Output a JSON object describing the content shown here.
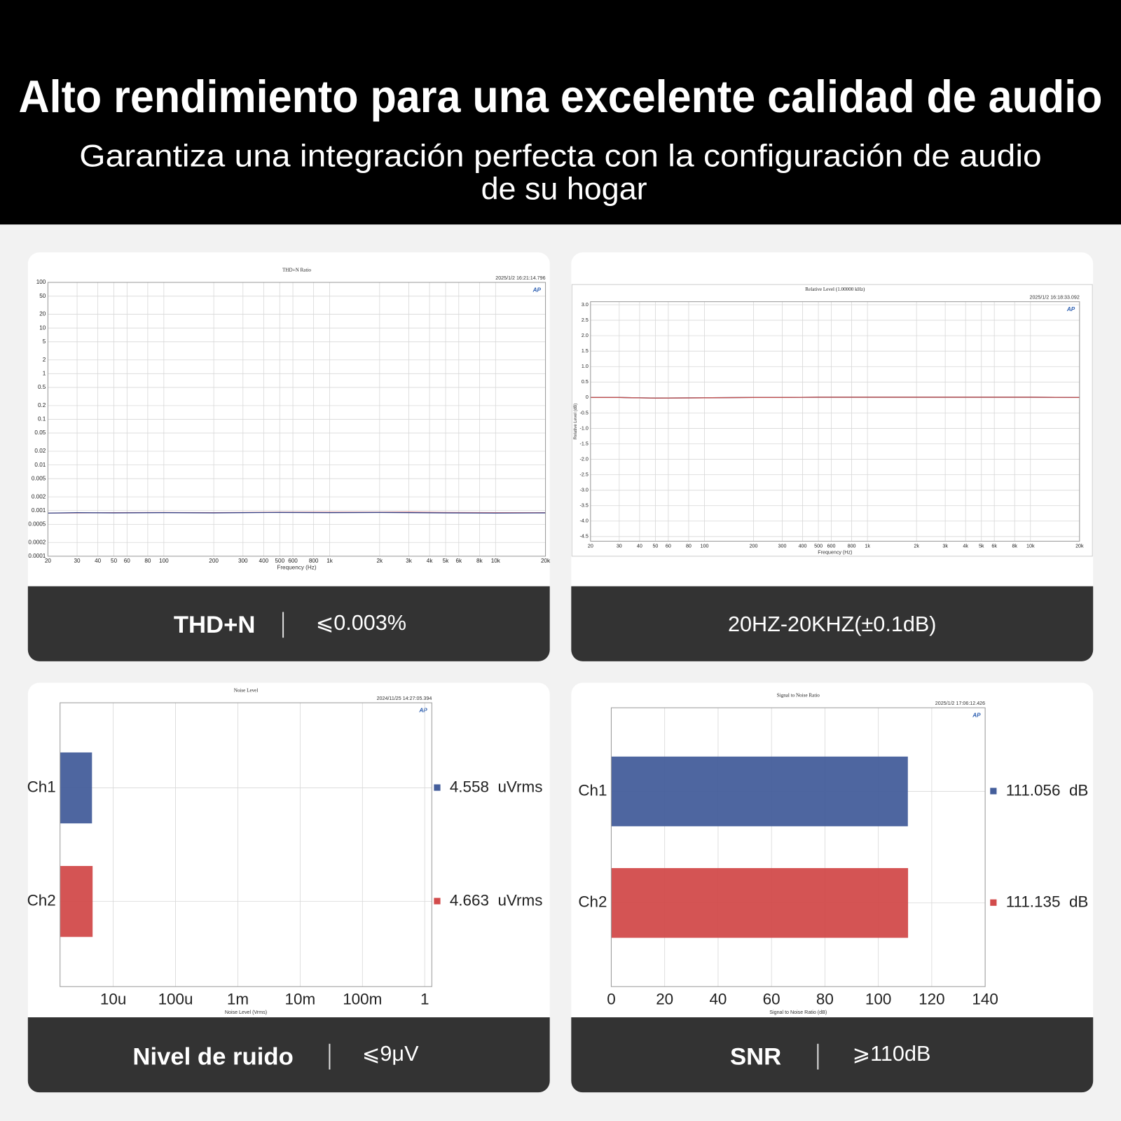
{
  "header": {
    "title": "Alto rendimiento para una excelente calidad de audio",
    "subtitle": [
      "Garantiza una integración perfecta con la configuración de audio",
      "de su hogar"
    ]
  },
  "chart_data": [
    {
      "type": "line",
      "title": "THD+N Ratio",
      "timestamp": "2025/1/2 16:21:14.796",
      "logo": "AP",
      "x_label": "Frequency (Hz)",
      "x": [
        20,
        30,
        50,
        100,
        200,
        300,
        500,
        1000,
        2000,
        3000,
        5000,
        10000,
        20000
      ],
      "series": [
        {
          "color": "#d9848a",
          "values": [
            0.00088,
            0.00089,
            0.0009,
            0.00091,
            0.0009,
            0.00091,
            0.00092,
            0.00092,
            0.00092,
            0.00093,
            0.00091,
            0.0009,
            0.0009
          ]
        },
        {
          "color": "#3b4a8c",
          "values": [
            0.00088,
            0.0009,
            0.00089,
            0.0009,
            0.00089,
            0.0009,
            0.00091,
            0.0009,
            0.00091,
            0.0009,
            0.00089,
            0.00088,
            0.00089
          ]
        }
      ],
      "xscale": "log",
      "xlim": [
        20,
        20000
      ],
      "xticks": [
        20,
        30,
        40,
        50,
        60,
        80,
        100,
        200,
        300,
        400,
        500,
        600,
        800,
        {
          "value": 1000,
          "label": "1k"
        },
        {
          "value": 2000,
          "label": "2k"
        },
        {
          "value": 3000,
          "label": "3k"
        },
        {
          "value": 4000,
          "label": "4k"
        },
        {
          "value": 5000,
          "label": "5k"
        },
        {
          "value": 6000,
          "label": "6k"
        },
        {
          "value": 8000,
          "label": "8k"
        },
        {
          "value": 10000,
          "label": "10k"
        },
        {
          "value": 20000,
          "label": "20k"
        }
      ],
      "yscale": "log",
      "ylim": [
        0.0001,
        100
      ],
      "yticks": [
        100,
        50,
        20,
        10,
        5,
        2,
        1,
        0.5,
        0.2,
        0.1,
        0.05,
        0.02,
        0.01,
        0.005,
        0.002,
        0.001,
        0.0005,
        0.0002,
        0.0001
      ],
      "grid": true
    },
    {
      "type": "line",
      "title": "Relative Level (1.00000 kHz)",
      "timestamp": "2025/1/2 16:18:33.092",
      "logo": "AP",
      "x_label": "Frequency (Hz)",
      "y_label": "Relative Level (dB)",
      "x": [
        20,
        30,
        50,
        100,
        200,
        300,
        500,
        1000,
        2000,
        3000,
        5000,
        10000,
        20000
      ],
      "series": [
        {
          "color": "#3b4a8c",
          "values": [
            0,
            0,
            -0.02,
            -0.01,
            0,
            0,
            0.01,
            0.01,
            0.01,
            0.01,
            0.01,
            0.01,
            0
          ]
        },
        {
          "color": "#c0504d",
          "values": [
            0,
            0,
            -0.02,
            -0.01,
            0,
            0,
            0.01,
            0.01,
            0.01,
            0.01,
            0.01,
            0.01,
            0
          ]
        }
      ],
      "xscale": "log",
      "xlim": [
        20,
        20000
      ],
      "xticks": [
        20,
        30,
        40,
        50,
        60,
        80,
        100,
        200,
        300,
        400,
        500,
        600,
        800,
        {
          "value": 1000,
          "label": "1k"
        },
        {
          "value": 2000,
          "label": "2k"
        },
        {
          "value": 3000,
          "label": "3k"
        },
        {
          "value": 4000,
          "label": "4k"
        },
        {
          "value": 5000,
          "label": "5k"
        },
        {
          "value": 6000,
          "label": "6k"
        },
        {
          "value": 8000,
          "label": "8k"
        },
        {
          "value": 10000,
          "label": "10k"
        },
        {
          "value": 20000,
          "label": "20k"
        }
      ],
      "yscale": "linear",
      "ylim": [
        -4.65,
        3.1
      ],
      "yticks": [
        {
          "value": 3,
          "label": "3.0"
        },
        2.5,
        {
          "value": 2,
          "label": "2.0"
        },
        1.5,
        {
          "value": 1,
          "label": "1.0"
        },
        0.5,
        0,
        -0.5,
        {
          "value": -1,
          "label": "-1.0"
        },
        -1.5,
        {
          "value": -2,
          "label": "-2.0"
        },
        -2.5,
        {
          "value": -3,
          "label": "-3.0"
        },
        -3.5,
        {
          "value": -4,
          "label": "-4.0"
        },
        -4.5
      ],
      "grid": true
    },
    {
      "type": "bar",
      "orientation": "horizontal",
      "title": "Noise Level",
      "timestamp": "2024/11/25 14:27:05.394",
      "logo": "AP",
      "x_label": "Noise Level (Vrms)",
      "categories": [
        "Ch1",
        "Ch2"
      ],
      "values": [
        4.558e-06,
        4.663e-06
      ],
      "value_labels": [
        "4.558  uVrms",
        "4.663  uVrms"
      ],
      "colors": [
        "#445e9b",
        "#d24b4b"
      ],
      "xscale": "log",
      "xlim": [
        1.4e-06,
        1.3
      ],
      "xticks": [
        {
          "value": 1e-05,
          "label": "10u"
        },
        {
          "value": 0.0001,
          "label": "100u"
        },
        {
          "value": 0.001,
          "label": "1m"
        },
        {
          "value": 0.01,
          "label": "10m"
        },
        {
          "value": 0.1,
          "label": "100m"
        },
        1
      ],
      "grid": true
    },
    {
      "type": "bar",
      "orientation": "horizontal",
      "title": "Signal to Noise Ratio",
      "timestamp": "2025/1/2 17:06:12.426",
      "logo": "AP",
      "x_label": "Signal to Noise Ratio (dB)",
      "categories": [
        "Ch1",
        "Ch2"
      ],
      "values": [
        111.056,
        111.135
      ],
      "value_labels": [
        "111.056  dB",
        "111.135  dB"
      ],
      "colors": [
        "#445e9b",
        "#d24b4b"
      ],
      "xscale": "linear",
      "xlim": [
        0,
        140
      ],
      "xticks": [
        0,
        20,
        40,
        60,
        80,
        100,
        120,
        140
      ],
      "grid": true
    }
  ],
  "panels": [
    {
      "label": "THD+N",
      "value": "⩽0.003%"
    },
    {
      "label": "20HZ-20KHZ(±0.1dB)"
    },
    {
      "label": "Nivel de ruido",
      "value": "⩽9μV"
    },
    {
      "label": "SNR",
      "value": "⩾110dB"
    }
  ]
}
